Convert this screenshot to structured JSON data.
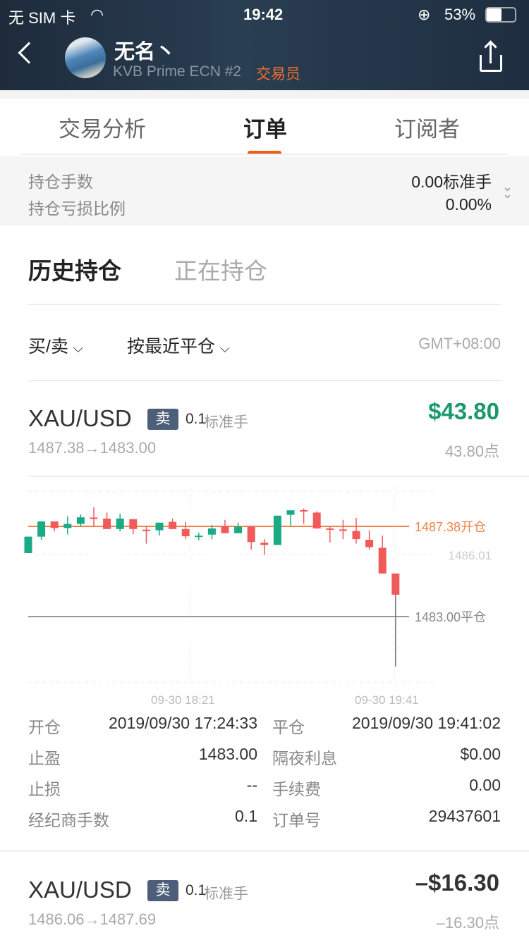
{
  "status_bar": {
    "carrier": "无 SIM 卡",
    "time": "19:42",
    "battery": "53%",
    "battery_level": 0.53
  },
  "nav": {
    "name": "无名丶",
    "account": "KVB Prime ECN #2",
    "role": "交易员",
    "role_color": "#f0702a"
  },
  "tabs": [
    {
      "label": "交易分析"
    },
    {
      "label": "订单",
      "active": true
    },
    {
      "label": "订阅者"
    }
  ],
  "summary": {
    "lots_label": "持仓手数",
    "lots_value": "0.00标准手",
    "pl_label": "持仓亏损比例",
    "pl_value": "0.00%"
  },
  "section_tabs": [
    {
      "label": "历史持仓",
      "active": true
    },
    {
      "label": "正在持仓"
    }
  ],
  "filters": {
    "side": "买/卖",
    "sort": "按最近平仓",
    "timezone": "GMT+08:00"
  },
  "orders": [
    {
      "symbol": "XAU/USD",
      "side": "卖",
      "lots": "0.1",
      "lots_unit": "标准手",
      "profit": "$43.80",
      "profit_color": "#1a9a6c",
      "prices": "1487.38→1483.00",
      "points": "43.80点",
      "details": {
        "open_label": "开仓",
        "open_time": "2019/09/30 17:24:33",
        "close_label": "平仓",
        "close_time": "2019/09/30 19:41:02",
        "tp_label": "止盈",
        "tp": "1483.00",
        "swap_label": "隔夜利息",
        "swap": "$0.00",
        "sl_label": "止损",
        "sl": "--",
        "fee_label": "手续费",
        "fee": "0.00",
        "broker_lots_label": "经纪商手数",
        "broker_lots": "0.1",
        "order_no_label": "订单号",
        "order_no": "29437601"
      }
    },
    {
      "symbol": "XAU/USD",
      "side": "卖",
      "lots": "0.1",
      "lots_unit": "标准手",
      "profit": "–$16.30",
      "profit_color": "#333333",
      "prices": "1486.06→1487.69",
      "points": "–16.30点"
    }
  ],
  "chart_data": {
    "type": "candlestick",
    "up_color": "#1aaa84",
    "down_color": "#f05a5a",
    "open_line": {
      "value": 1487.38,
      "label": "1487.38开仓",
      "color": "#f0824a"
    },
    "close_line": {
      "value": 1483.0,
      "label": "1483.00平仓",
      "color": "#999999"
    },
    "mid_label": {
      "value": 1486.01,
      "label": "1486.01"
    },
    "x_labels": [
      "09-30 18:21",
      "09-30 19:41"
    ],
    "candles": [
      [
        1486.08,
        1486.88,
        1486.88,
        1486.08
      ],
      [
        1486.88,
        1487.62,
        1487.62,
        1486.73
      ],
      [
        1487.62,
        1487.3,
        1487.62,
        1487.14
      ],
      [
        1487.3,
        1487.5,
        1487.87,
        1486.99
      ],
      [
        1487.5,
        1487.82,
        1487.96,
        1487.39
      ],
      [
        1487.81,
        1487.78,
        1488.3,
        1487.39
      ],
      [
        1487.76,
        1487.25,
        1488.05,
        1487.25
      ],
      [
        1487.25,
        1487.76,
        1487.99,
        1487.14
      ],
      [
        1487.73,
        1487.25,
        1487.73,
        1486.99
      ],
      [
        1487.22,
        1487.19,
        1487.37,
        1486.54
      ],
      [
        1487.19,
        1487.56,
        1487.56,
        1486.94
      ],
      [
        1487.6,
        1487.25,
        1487.76,
        1487.25
      ],
      [
        1487.25,
        1486.9,
        1487.6,
        1486.76
      ],
      [
        1486.9,
        1486.93,
        1487.07,
        1486.71
      ],
      [
        1486.98,
        1487.28,
        1487.45,
        1486.76
      ],
      [
        1487.37,
        1487.05,
        1487.7,
        1487.05
      ],
      [
        1487.05,
        1487.37,
        1487.56,
        1487.05
      ],
      [
        1487.37,
        1486.62,
        1487.37,
        1486.25
      ],
      [
        1486.59,
        1486.48,
        1486.76,
        1486.0
      ],
      [
        1486.48,
        1487.9,
        1487.9,
        1486.48
      ],
      [
        1487.94,
        1488.16,
        1488.16,
        1487.41
      ],
      [
        1488.17,
        1488.12,
        1488.25,
        1487.51
      ],
      [
        1488.05,
        1487.28,
        1488.11,
        1487.28
      ],
      [
        1487.28,
        1487.24,
        1487.39,
        1486.59
      ],
      [
        1487.23,
        1487.2,
        1487.7,
        1486.76
      ],
      [
        1487.16,
        1486.76,
        1487.79,
        1486.54
      ],
      [
        1486.73,
        1486.37,
        1487.19,
        1486.25
      ],
      [
        1486.34,
        1485.09,
        1486.94,
        1485.09
      ],
      [
        1485.09,
        1484.06,
        1485.09,
        1480.57
      ]
    ]
  }
}
